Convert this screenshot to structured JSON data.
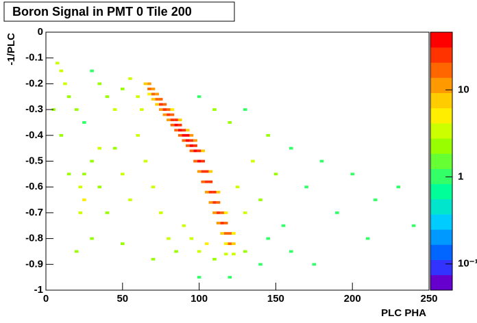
{
  "chart_data": {
    "type": "heatmap",
    "title": "Boron Signal in PMT 0 Tile 200",
    "x_label": "PLC PHA",
    "y_label": "-1/PLC",
    "xlim": [
      0,
      250
    ],
    "ylim": [
      -1,
      0
    ],
    "xticks": [
      0,
      50,
      100,
      150,
      200,
      250
    ],
    "yticks": [
      0,
      -0.1,
      -0.2,
      -0.3,
      -0.4,
      -0.5,
      -0.6,
      -0.7,
      -0.8,
      -0.9,
      -1
    ],
    "zlim": [
      0.05,
      46
    ],
    "zlog": true,
    "zticks": [
      {
        "value": 10,
        "label": "10"
      },
      {
        "value": 1,
        "label": "1"
      },
      {
        "value": 0.1,
        "label": "10⁻¹"
      }
    ],
    "palette": [
      "#6600cc",
      "#3333ff",
      "#0066ff",
      "#0099ff",
      "#00ccff",
      "#00e5cc",
      "#00ff99",
      "#33ff66",
      "#66ff33",
      "#99ff00",
      "#ccff00",
      "#ffee00",
      "#ffcc00",
      "#ff9900",
      "#ff6600",
      "#ff3300",
      "#ff0000"
    ],
    "cells": [
      [
        65,
        -0.2,
        8
      ],
      [
        67.5,
        -0.2,
        12
      ],
      [
        67.5,
        -0.22,
        15
      ],
      [
        70,
        -0.22,
        10
      ],
      [
        70,
        -0.24,
        18
      ],
      [
        72.5,
        -0.24,
        12
      ],
      [
        67.5,
        -0.24,
        6
      ],
      [
        72.5,
        -0.26,
        20
      ],
      [
        75,
        -0.26,
        14
      ],
      [
        70,
        -0.26,
        8
      ],
      [
        75,
        -0.28,
        22
      ],
      [
        77.5,
        -0.28,
        16
      ],
      [
        72.5,
        -0.28,
        9
      ],
      [
        77.5,
        -0.3,
        25
      ],
      [
        80,
        -0.3,
        18
      ],
      [
        75,
        -0.3,
        10
      ],
      [
        82.5,
        -0.3,
        6
      ],
      [
        80,
        -0.32,
        28
      ],
      [
        82.5,
        -0.32,
        20
      ],
      [
        77.5,
        -0.32,
        10
      ],
      [
        82.5,
        -0.34,
        30
      ],
      [
        85,
        -0.34,
        24
      ],
      [
        80,
        -0.34,
        12
      ],
      [
        87.5,
        -0.34,
        8
      ],
      [
        85,
        -0.36,
        32
      ],
      [
        87.5,
        -0.36,
        26
      ],
      [
        82.5,
        -0.36,
        14
      ],
      [
        87.5,
        -0.38,
        36
      ],
      [
        90,
        -0.38,
        28
      ],
      [
        85,
        -0.38,
        16
      ],
      [
        92.5,
        -0.38,
        8
      ],
      [
        90,
        -0.4,
        40
      ],
      [
        92.5,
        -0.4,
        34
      ],
      [
        87.5,
        -0.4,
        18
      ],
      [
        95,
        -0.4,
        12
      ],
      [
        92.5,
        -0.42,
        42
      ],
      [
        95,
        -0.42,
        30
      ],
      [
        90,
        -0.42,
        20
      ],
      [
        97.5,
        -0.42,
        10
      ],
      [
        95,
        -0.44,
        38
      ],
      [
        97.5,
        -0.44,
        28
      ],
      [
        92.5,
        -0.44,
        18
      ],
      [
        97.5,
        -0.46,
        35
      ],
      [
        100,
        -0.46,
        26
      ],
      [
        95,
        -0.46,
        15
      ],
      [
        102.5,
        -0.46,
        8
      ],
      [
        100,
        -0.5,
        32
      ],
      [
        102.5,
        -0.5,
        24
      ],
      [
        97.5,
        -0.5,
        14
      ],
      [
        102.5,
        -0.54,
        30
      ],
      [
        105,
        -0.54,
        22
      ],
      [
        100,
        -0.54,
        12
      ],
      [
        107.5,
        -0.54,
        7
      ],
      [
        105,
        -0.58,
        28
      ],
      [
        107.5,
        -0.58,
        24
      ],
      [
        102.5,
        -0.58,
        14
      ],
      [
        107.5,
        -0.62,
        30
      ],
      [
        110,
        -0.62,
        22
      ],
      [
        105,
        -0.62,
        12
      ],
      [
        112.5,
        -0.62,
        8
      ],
      [
        110,
        -0.66,
        28
      ],
      [
        112.5,
        -0.66,
        20
      ],
      [
        107.5,
        -0.66,
        12
      ],
      [
        112.5,
        -0.7,
        26
      ],
      [
        115,
        -0.7,
        18
      ],
      [
        110,
        -0.7,
        10
      ],
      [
        117.5,
        -0.7,
        6
      ],
      [
        115,
        -0.74,
        24
      ],
      [
        117.5,
        -0.74,
        16
      ],
      [
        112.5,
        -0.74,
        10
      ],
      [
        117.5,
        -0.78,
        20
      ],
      [
        120,
        -0.78,
        14
      ],
      [
        115,
        -0.78,
        9
      ],
      [
        122.5,
        -0.78,
        5
      ],
      [
        120,
        -0.82,
        14
      ],
      [
        122.5,
        -0.82,
        8
      ],
      [
        117.5,
        -0.82,
        6
      ],
      [
        122.5,
        -0.86,
        4
      ],
      [
        117.5,
        -0.86,
        3
      ],
      [
        10,
        -0.15,
        3
      ],
      [
        7.5,
        -0.12,
        4
      ],
      [
        12.5,
        -0.2,
        3
      ],
      [
        15,
        -0.25,
        2
      ],
      [
        20,
        -0.3,
        2
      ],
      [
        25,
        -0.35,
        1
      ],
      [
        30,
        -0.15,
        1
      ],
      [
        35,
        -0.2,
        2
      ],
      [
        40,
        -0.25,
        2
      ],
      [
        45,
        -0.3,
        3
      ],
      [
        50,
        -0.22,
        2
      ],
      [
        55,
        -0.18,
        3
      ],
      [
        60,
        -0.25,
        4
      ],
      [
        62.5,
        -0.3,
        3
      ],
      [
        22.5,
        -0.6,
        4
      ],
      [
        25,
        -0.65,
        5
      ],
      [
        22.5,
        -0.7,
        3
      ],
      [
        25,
        -0.55,
        2
      ],
      [
        30,
        -0.5,
        2
      ],
      [
        35,
        -0.6,
        2
      ],
      [
        40,
        -0.7,
        2
      ],
      [
        45,
        -0.45,
        2
      ],
      [
        50,
        -0.55,
        3
      ],
      [
        55,
        -0.65,
        3
      ],
      [
        60,
        -0.4,
        4
      ],
      [
        65,
        -0.5,
        4
      ],
      [
        70,
        -0.6,
        4
      ],
      [
        75,
        -0.7,
        4
      ],
      [
        80,
        -0.8,
        3
      ],
      [
        85,
        -0.85,
        2
      ],
      [
        90,
        -0.75,
        4
      ],
      [
        95,
        -0.8,
        4
      ],
      [
        100,
        -0.85,
        3
      ],
      [
        105,
        -0.82,
        5
      ],
      [
        110,
        -0.88,
        2
      ],
      [
        125,
        -0.6,
        4
      ],
      [
        130,
        -0.7,
        3
      ],
      [
        135,
        -0.5,
        3
      ],
      [
        140,
        -0.65,
        2
      ],
      [
        145,
        -0.4,
        2
      ],
      [
        150,
        -0.55,
        2
      ],
      [
        155,
        -0.75,
        1
      ],
      [
        160,
        -0.45,
        1
      ],
      [
        170,
        -0.6,
        1
      ],
      [
        180,
        -0.5,
        1
      ],
      [
        190,
        -0.7,
        1
      ],
      [
        200,
        -0.55,
        1
      ],
      [
        215,
        -0.65,
        1
      ],
      [
        230,
        -0.6,
        1
      ],
      [
        240,
        -0.75,
        1
      ],
      [
        130,
        -0.3,
        1
      ],
      [
        120,
        -0.35,
        2
      ],
      [
        110,
        -0.3,
        2
      ],
      [
        100,
        -0.25,
        1
      ],
      [
        20,
        -0.85,
        2
      ],
      [
        30,
        -0.8,
        2
      ],
      [
        50,
        -0.82,
        2
      ],
      [
        70,
        -0.88,
        2
      ],
      [
        120,
        -0.95,
        1
      ],
      [
        140,
        -0.9,
        1
      ],
      [
        100,
        -0.95,
        1
      ],
      [
        35,
        -0.45,
        3
      ],
      [
        15,
        -0.55,
        2
      ],
      [
        5,
        -0.3,
        2
      ],
      [
        10,
        -0.4,
        2
      ],
      [
        130,
        -0.85,
        2
      ],
      [
        145,
        -0.8,
        1
      ],
      [
        160,
        -0.85,
        1
      ],
      [
        175,
        -0.9,
        1
      ],
      [
        210,
        -0.8,
        1
      ]
    ]
  }
}
